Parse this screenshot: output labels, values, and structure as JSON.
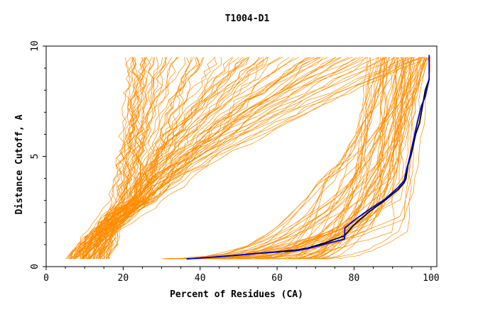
{
  "chart_data": {
    "type": "line",
    "title": "T1004-D1",
    "xlabel": "Percent of Residues (CA)",
    "ylabel": "Distance Cutoff, A",
    "xlim": [
      0,
      101.5
    ],
    "ylim": [
      0,
      10
    ],
    "xticks": [
      "0",
      "20",
      "40",
      "60",
      "80",
      "100"
    ],
    "yticks": [
      "0",
      "5",
      "10"
    ],
    "grid": false,
    "legend": "none",
    "colors": {
      "background_models": "#ff8c00",
      "highlight_black": "#000000",
      "highlight_blue": "#0000cc"
    },
    "background_curves_count": 150,
    "background_groups": [
      {
        "note_free": true,
        "count": 90,
        "start_x": [
          5,
          16
        ],
        "start_y": 0.35,
        "steep_x": [
          16,
          25
        ],
        "end_x": [
          21,
          100
        ],
        "end_y": 9.5
      },
      {
        "count": 60,
        "start_x": [
          30,
          72
        ],
        "start_y": 0.35,
        "knee_x": [
          70,
          95
        ],
        "knee_y": [
          1.5,
          4.5
        ],
        "end_x": [
          80,
          100
        ],
        "end_y": 9.5
      }
    ],
    "series": [
      {
        "color": "#000000",
        "x": [
          36.5,
          45,
          55,
          65,
          68,
          72,
          77.5,
          80,
          84,
          88,
          91.5,
          93,
          93.5,
          94,
          95,
          96,
          97,
          98,
          98.5,
          99.5
        ],
        "y": [
          0.35,
          0.45,
          0.6,
          0.75,
          0.85,
          1.05,
          1.4,
          1.9,
          2.5,
          3.0,
          3.5,
          3.8,
          4.0,
          4.6,
          5.2,
          6.0,
          6.5,
          7.5,
          8.0,
          8.5
        ]
      },
      {
        "color": "#0000cc",
        "x": [
          36.5,
          45,
          55,
          65,
          68,
          72,
          77.5,
          77.6,
          80,
          84,
          88,
          91.5,
          93,
          93.5,
          94.5,
          95.5,
          96.5,
          97.5,
          98.5,
          99.5,
          99.5
        ],
        "y": [
          0.35,
          0.45,
          0.6,
          0.72,
          0.82,
          1.0,
          1.25,
          1.75,
          2.1,
          2.6,
          3.05,
          3.6,
          3.9,
          4.3,
          5.0,
          5.8,
          6.6,
          7.3,
          7.7,
          8.5,
          9.6
        ]
      }
    ]
  }
}
